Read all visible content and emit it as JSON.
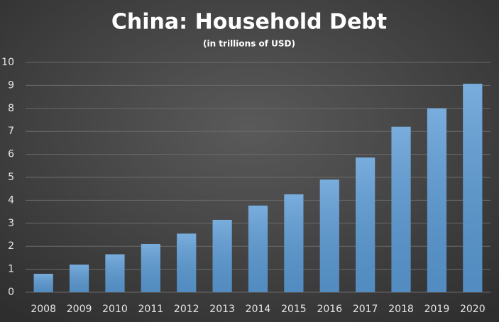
{
  "chart_data": {
    "type": "bar",
    "title": "China: Household Debt",
    "subtitle": "(in trillions of USD)",
    "categories": [
      "2008",
      "2009",
      "2010",
      "2011",
      "2012",
      "2013",
      "2014",
      "2015",
      "2016",
      "2017",
      "2018",
      "2019",
      "2020"
    ],
    "values": [
      0.8,
      1.2,
      1.65,
      2.1,
      2.55,
      3.15,
      3.77,
      4.26,
      4.9,
      5.86,
      7.2,
      8.0,
      9.07
    ],
    "color": "#5b9bd5",
    "ylim": [
      0,
      10
    ],
    "yticks": [
      0,
      1,
      2,
      3,
      4,
      5,
      6,
      7,
      8,
      9,
      10
    ],
    "grid": true
  }
}
